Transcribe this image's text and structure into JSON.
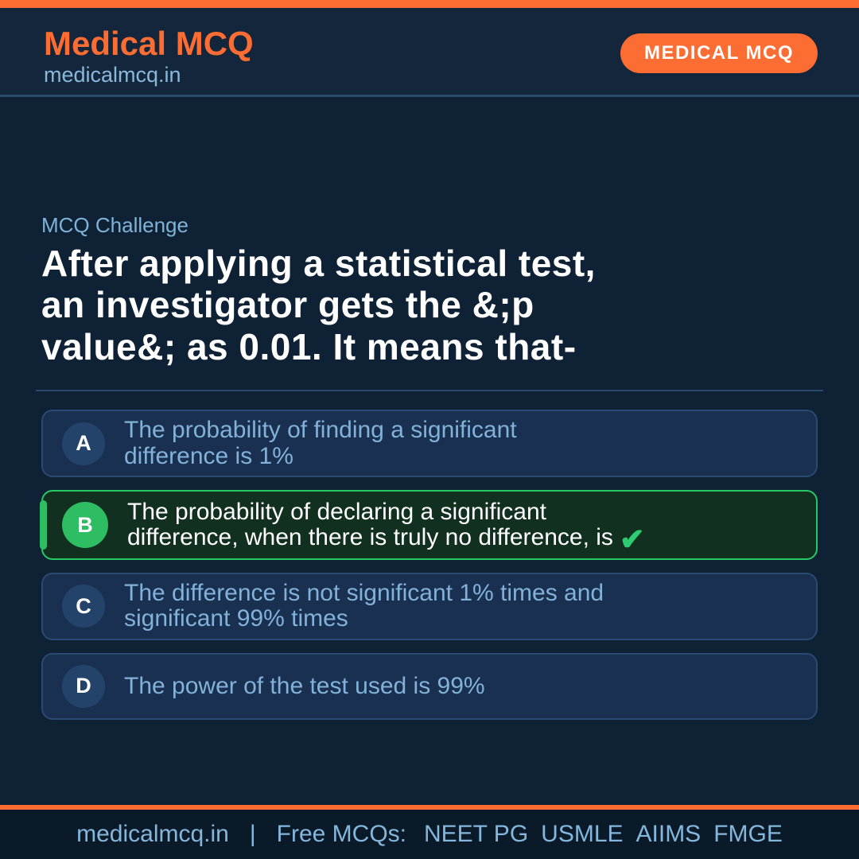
{
  "colors": {
    "accent_orange": "#fb6d33",
    "page_bg": "#0f2134",
    "header_bg": "#14263c",
    "divider_blue": "#2c4a6e",
    "option_bg": "#1a3050",
    "option_border": "#2a4a73",
    "option_text_blue": "#82b2da",
    "letter_circle_bg": "#24436b",
    "correct_bg": "#12301f",
    "correct_border": "#27c863",
    "correct_circle": "#2ebd63",
    "check_green": "#2ecc71",
    "footer_bg": "#0a1a29",
    "footer_text": "#85b6dc",
    "question_white": "#ffffff"
  },
  "header": {
    "title": "Medical MCQ",
    "subtitle": "medicalmcq.in",
    "badge": "MEDICAL MCQ"
  },
  "question": {
    "label": "MCQ Challenge",
    "line1": "After applying a statistical test,",
    "line2": "an investigator gets the &;p",
    "line3": "value&; as 0.01. It means that-"
  },
  "options": [
    {
      "letter": "A",
      "line1": "The probability of finding a significant",
      "line2": "difference is 1%",
      "correct": false
    },
    {
      "letter": "B",
      "line1": "The probability of declaring a significant",
      "line2": "difference, when there is truly no difference, is",
      "correct": true,
      "check_icon": "✔"
    },
    {
      "letter": "C",
      "line1": "The difference is not significant 1% times and",
      "line2": "significant 99% times",
      "correct": false
    },
    {
      "letter": "D",
      "line1": "The power of the test used is 99%",
      "correct": false
    }
  ],
  "footer": {
    "site": "medicalmcq.in",
    "separator": "|",
    "tagline": "Free MCQs:",
    "exams": [
      "NEET PG",
      "USMLE",
      "AIIMS",
      "FMGE"
    ]
  }
}
